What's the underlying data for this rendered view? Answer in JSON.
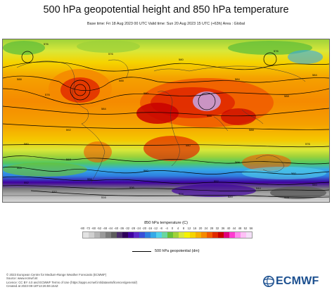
{
  "title": "500 hPa geopotential height and 850 hPa temperature",
  "subtitle": "Base time: Fri 18 Aug 2023 00 UTC Valid time: Sun 20 Aug 2023 15 UTC (+63h) Area : Global",
  "legend": {
    "temperature_title": "850 hPa temperature (C)",
    "ticks": [
      "-80",
      "-72",
      "-60",
      "-52",
      "-48",
      "-44",
      "-40",
      "-36",
      "-32",
      "-28",
      "-24",
      "-20",
      "-16",
      "-12",
      "-8",
      "-4",
      "0",
      "4",
      "8",
      "12",
      "16",
      "20",
      "24",
      "28",
      "32",
      "36",
      "40",
      "44",
      "48",
      "52",
      "56"
    ],
    "colors": [
      "#e3e3e3",
      "#cfcfcf",
      "#b5b5b5",
      "#9a9a9a",
      "#7c7c7c",
      "#5d5d5d",
      "#4b2d6b",
      "#2e005a",
      "#4000a0",
      "#5a28c8",
      "#3a4fd8",
      "#2f7fe0",
      "#35a9e8",
      "#52d0ea",
      "#6ad7a0",
      "#66c03a",
      "#9fd23a",
      "#d9e83a",
      "#f5f200",
      "#f5d400",
      "#f5b000",
      "#f58a00",
      "#f05a00",
      "#e02a00",
      "#c80000",
      "#e0007a",
      "#ff3ad0",
      "#ff8aee",
      "#ffc0f6",
      "#f4e0f8"
    ],
    "geopotential_label": "500 hPa geopotential (dm)"
  },
  "footer": {
    "line1": "© 2023 European Centre for Medium-Range Weather Forecasts (ECMWF)",
    "line2": "Source: www.ecmwf.int",
    "line3": "Licence: CC BY 4.0 and ECMWF Terms of Use (https://apps.ecmwf.int/datasets/licences/general/)",
    "line4": "Created at 2023-08-18T13:26:59.154Z"
  },
  "logo": {
    "text": "ECMWF",
    "color": "#1b4f8f"
  },
  "map": {
    "contour_labels": [
      "576",
      "576",
      "580",
      "576",
      "584",
      "588",
      "588",
      "584",
      "576",
      "580",
      "588",
      "584",
      "588",
      "592",
      "588",
      "580",
      "580",
      "576",
      "568",
      "568",
      "564",
      "560",
      "560",
      "556",
      "552",
      "552",
      "544",
      "536",
      "540",
      "524",
      "532",
      "520",
      "528",
      "516"
    ]
  }
}
